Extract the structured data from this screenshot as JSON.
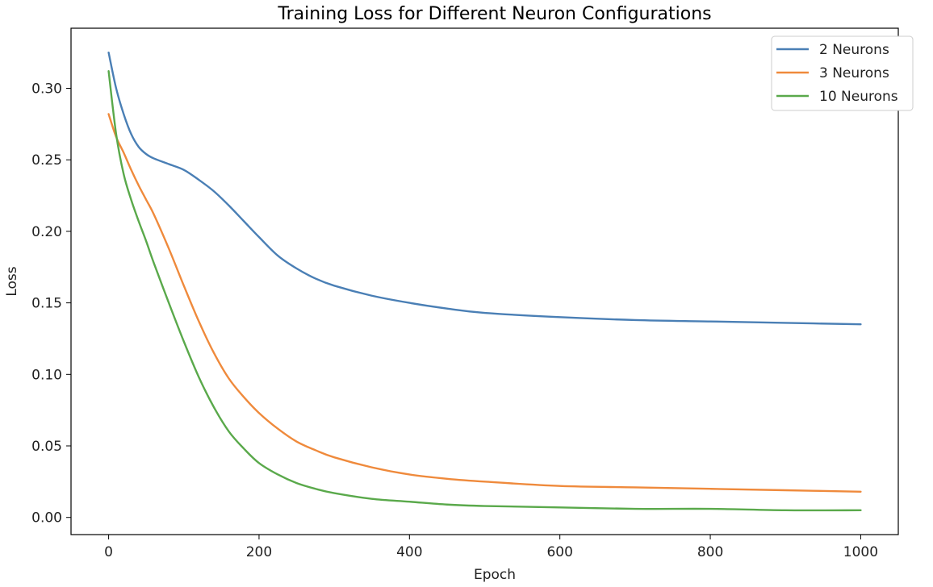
{
  "chart_data": {
    "type": "line",
    "title": "Training Loss for Different Neuron Configurations",
    "xlabel": "Epoch",
    "ylabel": "Loss",
    "xlim": [
      -50,
      1050
    ],
    "ylim": [
      -0.012,
      0.342
    ],
    "xticks": [
      0,
      200,
      400,
      600,
      800,
      1000
    ],
    "yticks": [
      0.0,
      0.05,
      0.1,
      0.15,
      0.2,
      0.25,
      0.3
    ],
    "ytick_labels": [
      "0.00",
      "0.05",
      "0.10",
      "0.15",
      "0.20",
      "0.25",
      "0.30"
    ],
    "grid": false,
    "legend_position": "top-right",
    "x": [
      0,
      10,
      20,
      30,
      40,
      50,
      60,
      80,
      100,
      120,
      140,
      160,
      180,
      200,
      225,
      250,
      275,
      300,
      350,
      400,
      450,
      500,
      600,
      700,
      800,
      900,
      1000
    ],
    "series": [
      {
        "name": "2 Neurons",
        "color": "#4a7fb5",
        "values": [
          0.325,
          0.3,
          0.282,
          0.268,
          0.259,
          0.254,
          0.251,
          0.247,
          0.243,
          0.236,
          0.228,
          0.218,
          0.207,
          0.196,
          0.183,
          0.174,
          0.167,
          0.162,
          0.155,
          0.15,
          0.146,
          0.143,
          0.14,
          0.138,
          0.137,
          0.136,
          0.135
        ]
      },
      {
        "name": "3 Neurons",
        "color": "#ef8a3c",
        "values": [
          0.282,
          0.266,
          0.255,
          0.243,
          0.232,
          0.222,
          0.212,
          0.188,
          0.162,
          0.137,
          0.115,
          0.097,
          0.084,
          0.073,
          0.062,
          0.053,
          0.047,
          0.042,
          0.035,
          0.03,
          0.027,
          0.025,
          0.022,
          0.021,
          0.02,
          0.019,
          0.018
        ]
      },
      {
        "name": "10 Neurons",
        "color": "#5aa94b",
        "values": [
          0.312,
          0.268,
          0.24,
          0.222,
          0.207,
          0.193,
          0.178,
          0.15,
          0.123,
          0.098,
          0.077,
          0.06,
          0.048,
          0.038,
          0.03,
          0.024,
          0.02,
          0.017,
          0.013,
          0.011,
          0.009,
          0.008,
          0.007,
          0.006,
          0.006,
          0.005,
          0.005
        ]
      }
    ]
  }
}
